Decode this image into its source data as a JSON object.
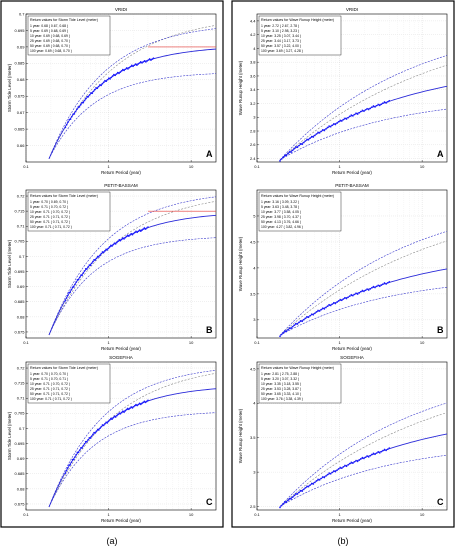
{
  "figure": {
    "column_labels": [
      "(a)",
      "(b)"
    ]
  },
  "colors": {
    "points": "#1a1aff",
    "fit": "#2b2bd9",
    "ci": "#3a3acc",
    "sample_band": "#888888",
    "threshold": "#e53935"
  },
  "chart_data": [
    {
      "type": "scatter",
      "title": "VRIDI",
      "panel_letter": "A",
      "xlabel": "Return Period (year)",
      "ylabel": "Storm Tide Level (meter)",
      "x_scale": "log",
      "xlim": [
        0.1,
        20
      ],
      "ylim": [
        0.655,
        0.7
      ],
      "x_ticks": [
        0.1,
        1,
        10
      ],
      "y_ticks": [
        0.66,
        0.665,
        0.67,
        0.675,
        0.68,
        0.685,
        0.69,
        0.695,
        0.7
      ],
      "threshold": 0.69,
      "points_start": 0.3,
      "points_end": 3.5,
      "legend_title": "Return values for Storm Tide Level (meter)",
      "legend_lines": [
        "1 year: 0.68 ( 0.67, 0.68 )",
        "5 year: 0.69 ( 0.68, 0.69 )",
        "10 year: 0.69 ( 0.68, 0.69 )",
        "25 year: 0.69 ( 0.68, 0.70 )",
        "50 year: 0.69 ( 0.68, 0.70 )",
        "100 year: 0.69 ( 0.68, 0.70 )"
      ],
      "curve": {
        "y0": 0.656,
        "y_top": 0.6905,
        "ci_low_top": 0.6825,
        "ci_high_top": 0.6975,
        "sample_top": 0.7
      }
    },
    {
      "type": "scatter",
      "title": "PETIT-BASSAM",
      "panel_letter": "B",
      "xlabel": "Return Period (year)",
      "ylabel": "Storm Tide Level (meter)",
      "x_scale": "log",
      "xlim": [
        0.1,
        20
      ],
      "ylim": [
        0.673,
        0.722
      ],
      "x_ticks": [
        0.1,
        1,
        10
      ],
      "y_ticks": [
        0.675,
        0.68,
        0.685,
        0.69,
        0.695,
        0.7,
        0.705,
        0.71,
        0.715,
        0.72
      ],
      "threshold": 0.715,
      "points_start": 0.3,
      "points_end": 3,
      "legend_title": "Return values for Storm Tide Level (meter)",
      "legend_lines": [
        "1 year: 0.70 ( 0.69, 0.70 )",
        "5 year: 0.71 ( 0.70, 0.72 )",
        "10 year: 0.71 ( 0.70, 0.72 )",
        "25 year: 0.71 ( 0.71, 0.72 )",
        "50 year: 0.71 ( 0.71, 0.72 )",
        "100 year: 0.71 ( 0.71, 0.72 )"
      ],
      "curve": {
        "y0": 0.674,
        "y_top": 0.715,
        "ci_low_top": 0.707,
        "ci_high_top": 0.722,
        "sample_top": 0.722
      }
    },
    {
      "type": "scatter",
      "title": "SOGEFIHA",
      "panel_letter": "C",
      "xlabel": "Return Period (year)",
      "ylabel": "Storm Tide Level (meter)",
      "x_scale": "log",
      "xlim": [
        0.1,
        20
      ],
      "ylim": [
        0.673,
        0.722
      ],
      "x_ticks": [
        0.1,
        1,
        10
      ],
      "y_ticks": [
        0.675,
        0.68,
        0.685,
        0.69,
        0.695,
        0.7,
        0.705,
        0.71,
        0.715,
        0.72
      ],
      "threshold": null,
      "points_start": 0.3,
      "points_end": 3,
      "legend_title": "Return values for Storm Tide Level (meter)",
      "legend_lines": [
        "1 year: 0.70 ( 0.70, 0.70 )",
        "5 year: 0.71 ( 0.70, 0.71 )",
        "10 year: 0.71 ( 0.70, 0.72 )",
        "25 year: 0.71 ( 0.71, 0.72 )",
        "50 year: 0.71 ( 0.71, 0.72 )",
        "100 year: 0.71 ( 0.71, 0.72 )"
      ],
      "curve": {
        "y0": 0.674,
        "y_top": 0.7145,
        "ci_low_top": 0.706,
        "ci_high_top": 0.7215,
        "sample_top": 0.722
      }
    },
    {
      "type": "scatter",
      "title": "VRIDI",
      "panel_letter": "A",
      "xlabel": "Return Period (year)",
      "ylabel": "Wave Runup Height (meter)",
      "x_scale": "log",
      "xlim": [
        0.1,
        20
      ],
      "ylim": [
        2.35,
        4.5
      ],
      "x_ticks": [
        0.1,
        1,
        10
      ],
      "y_ticks": [
        2.4,
        2.6,
        2.8,
        3,
        3.2,
        3.4,
        3.6,
        3.8,
        4,
        4.2,
        4.4
      ],
      "threshold": null,
      "points_start": 0.1,
      "points_end": 4,
      "legend_title": "Return values for Wave Runup Height (meter)",
      "legend_lines": [
        "1 year: 2.72 ( 2.67, 2.78 )",
        "5 year: 3.10 ( 2.98, 3.23 )",
        "10 year: 3.25 ( 3.07, 3.44 )",
        "25 year: 3.44 ( 3.17, 3.73 )",
        "50 year: 3.57 ( 3.22, 4.00 )",
        "100 year: 3.69 ( 3.27, 4.28 )"
      ],
      "curve": {
        "y0": 2.38,
        "y_top": 3.8,
        "ci_low_top": 3.32,
        "ci_high_top": 4.5,
        "sample_top": 4.5
      }
    },
    {
      "type": "scatter",
      "title": "PETIT-BASSAM",
      "panel_letter": "B",
      "xlabel": "Return Period (year)",
      "ylabel": "Wave Runup Height (meter)",
      "x_scale": "log",
      "xlim": [
        0.1,
        20
      ],
      "ylim": [
        2.65,
        5.5
      ],
      "x_ticks": [
        0.1,
        1,
        10
      ],
      "y_ticks": [
        3,
        3.5,
        4,
        4.5,
        5
      ],
      "threshold": null,
      "points_start": 0.1,
      "points_end": 4,
      "legend_title": "Return values for Wave Runup Height (meter)",
      "legend_lines": [
        "1 year: 3.16 ( 3.09, 3.22 )",
        "5 year: 3.63 ( 3.48, 3.78 )",
        "10 year: 3.77 ( 3.58, 4.05 )",
        "25 year: 3.98 ( 3.70, 4.37 )",
        "50 year: 4.13 ( 3.76, 4.66 )",
        "100 year: 4.27 ( 3.82, 4.96 )"
      ],
      "curve": {
        "y0": 2.7,
        "y_top": 4.4,
        "ci_low_top": 3.88,
        "ci_high_top": 5.5,
        "sample_top": 5.5
      }
    },
    {
      "type": "scatter",
      "title": "SOGEFIHA",
      "panel_letter": "C",
      "xlabel": "Return Period (year)",
      "ylabel": "Wave Runup Height (meter)",
      "x_scale": "log",
      "xlim": [
        0.1,
        20
      ],
      "ylim": [
        2.45,
        4.6
      ],
      "x_ticks": [
        0.1,
        1,
        10
      ],
      "y_ticks": [
        2.5,
        3,
        3.5,
        4,
        4.5
      ],
      "threshold": null,
      "points_start": 0.1,
      "points_end": 4,
      "legend_title": "Return values for Wave Runup Height (meter)",
      "legend_lines": [
        "1 year: 2.81 ( 2.75, 2.88 )",
        "5 year: 3.20 ( 3.07, 3.32 )",
        "10 year: 3.35 ( 3.18, 3.55 )",
        "25 year: 3.53 ( 3.28, 3.87 )",
        "50 year: 3.65 ( 3.33, 4.10 )",
        "100 year: 3.76 ( 3.38, 4.39 )"
      ],
      "curve": {
        "y0": 2.5,
        "y_top": 3.9,
        "ci_low_top": 3.45,
        "ci_high_top": 4.6,
        "sample_top": 4.6
      }
    }
  ]
}
